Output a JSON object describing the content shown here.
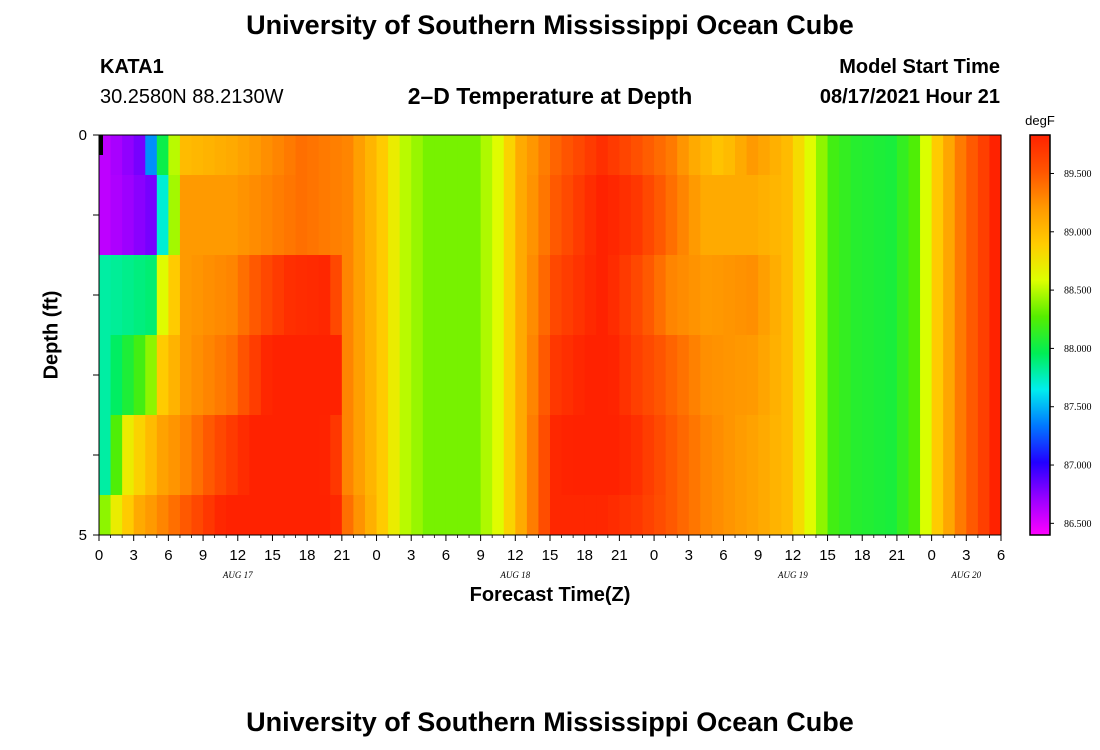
{
  "header": {
    "title_top": "University of Southern Mississippi Ocean Cube",
    "title_bottom": "University of Southern Mississippi Ocean Cube",
    "station": "KATA1",
    "coords": "30.2580N  88.2130W",
    "subtitle": "2–D Temperature at Depth",
    "model_start_label": "Model Start Time",
    "model_start_value": "08/17/2021 Hour 21"
  },
  "colors": {
    "background": "#ffffff",
    "colormap": [
      "#ff00ff",
      "#9900ff",
      "#2200ff",
      "#0077ff",
      "#00eeee",
      "#00ee55",
      "#55ee00",
      "#ddff00",
      "#ffcc00",
      "#ff9900",
      "#ff5500",
      "#ff2200"
    ]
  },
  "chart_data": {
    "type": "heatmap",
    "title": "2–D Temperature at Depth",
    "xlabel": "Forecast Time(Z)",
    "ylabel": "Depth (ft)",
    "colorbar_unit": "degF",
    "colorbar_ticks": [
      "89.500",
      "89.000",
      "88.500",
      "88.000",
      "87.500",
      "87.000",
      "86.500"
    ],
    "colorbar_tick_values": [
      89.5,
      89.0,
      88.5,
      88.0,
      87.5,
      87.0,
      86.5
    ],
    "colorbar_range": [
      86.4,
      89.83
    ],
    "y_ticks": [
      "0",
      "5"
    ],
    "y_range": [
      0,
      5
    ],
    "x_ticks": [
      "0",
      "3",
      "6",
      "9",
      "12",
      "15",
      "18",
      "21",
      "0",
      "3",
      "6",
      "9",
      "12",
      "15",
      "18",
      "21",
      "0",
      "3",
      "6",
      "9",
      "12",
      "15",
      "18",
      "21",
      "0",
      "3",
      "6"
    ],
    "x_range_hours": [
      0,
      78
    ],
    "date_labels": [
      {
        "text": "AUG 17",
        "hour": 12
      },
      {
        "text": "AUG 18",
        "hour": 36
      },
      {
        "text": "AUG 19",
        "hour": 60
      },
      {
        "text": "AUG 20",
        "hour": 75
      }
    ],
    "depth_levels": [
      0,
      1,
      2,
      3,
      4,
      5
    ],
    "hours": [
      0,
      1,
      2,
      3,
      4,
      5,
      6,
      7,
      8,
      9,
      10,
      11,
      12,
      13,
      14,
      15,
      16,
      17,
      18,
      19,
      20,
      21,
      22,
      23,
      24,
      25,
      26,
      27,
      28,
      29,
      30,
      31,
      32,
      33,
      34,
      35,
      36,
      37,
      38,
      39,
      40,
      41,
      42,
      43,
      44,
      45,
      46,
      47,
      48,
      49,
      50,
      51,
      52,
      53,
      54,
      55,
      56,
      57,
      58,
      59,
      60,
      61,
      62,
      63,
      64,
      65,
      66,
      67,
      68,
      69,
      70,
      71,
      72,
      73,
      74,
      75,
      76,
      77
    ],
    "keys": [
      {
        "depth": 0,
        "points": [
          [
            0,
            86.6
          ],
          [
            3,
            86.8
          ],
          [
            5,
            88.0
          ],
          [
            7,
            89.0
          ],
          [
            11,
            89.1
          ],
          [
            17,
            89.4
          ],
          [
            21,
            89.3
          ],
          [
            24,
            88.9
          ],
          [
            26,
            88.5
          ],
          [
            28,
            88.35
          ],
          [
            32,
            88.35
          ],
          [
            34,
            88.6
          ],
          [
            36,
            89.1
          ],
          [
            39,
            89.45
          ],
          [
            43,
            89.75
          ],
          [
            46,
            89.55
          ],
          [
            49,
            89.35
          ],
          [
            51,
            89.1
          ],
          [
            53,
            88.95
          ],
          [
            54,
            89.0
          ],
          [
            56,
            89.2
          ],
          [
            59,
            89.0
          ],
          [
            61,
            88.6
          ],
          [
            63,
            88.2
          ],
          [
            65,
            88.1
          ],
          [
            68,
            88.05
          ],
          [
            70,
            88.25
          ],
          [
            72,
            88.9
          ],
          [
            74,
            89.35
          ],
          [
            76,
            89.65
          ],
          [
            77,
            89.85
          ]
        ]
      },
      {
        "depth": 1,
        "points": [
          [
            0,
            86.6
          ],
          [
            4,
            86.8
          ],
          [
            5,
            87.7
          ],
          [
            7,
            89.2
          ],
          [
            11,
            89.2
          ],
          [
            17,
            89.4
          ],
          [
            21,
            89.3
          ],
          [
            24,
            88.9
          ],
          [
            26,
            88.5
          ],
          [
            28,
            88.35
          ],
          [
            32,
            88.35
          ],
          [
            34,
            88.6
          ],
          [
            36,
            89.1
          ],
          [
            39,
            89.5
          ],
          [
            43,
            89.85
          ],
          [
            46,
            89.7
          ],
          [
            49,
            89.4
          ],
          [
            52,
            89.1
          ],
          [
            56,
            89.1
          ],
          [
            59,
            89.0
          ],
          [
            61,
            88.6
          ],
          [
            63,
            88.2
          ],
          [
            65,
            88.1
          ],
          [
            68,
            88.05
          ],
          [
            70,
            88.25
          ],
          [
            72,
            88.9
          ],
          [
            74,
            89.35
          ],
          [
            76,
            89.65
          ],
          [
            77,
            89.85
          ]
        ]
      },
      {
        "depth": 2,
        "points": [
          [
            0,
            87.8
          ],
          [
            4,
            87.9
          ],
          [
            5,
            88.6
          ],
          [
            7,
            89.2
          ],
          [
            11,
            89.3
          ],
          [
            14,
            89.6
          ],
          [
            16,
            89.75
          ],
          [
            19,
            89.8
          ],
          [
            20,
            89.6
          ],
          [
            21,
            89.3
          ],
          [
            24,
            88.9
          ],
          [
            26,
            88.5
          ],
          [
            28,
            88.35
          ],
          [
            32,
            88.35
          ],
          [
            34,
            88.6
          ],
          [
            36,
            89.1
          ],
          [
            39,
            89.6
          ],
          [
            43,
            89.85
          ],
          [
            46,
            89.6
          ],
          [
            49,
            89.3
          ],
          [
            52,
            89.2
          ],
          [
            56,
            89.25
          ],
          [
            59,
            89.0
          ],
          [
            61,
            88.6
          ],
          [
            63,
            88.2
          ],
          [
            65,
            88.1
          ],
          [
            68,
            88.05
          ],
          [
            70,
            88.25
          ],
          [
            72,
            88.9
          ],
          [
            74,
            89.35
          ],
          [
            76,
            89.65
          ],
          [
            77,
            89.85
          ]
        ]
      },
      {
        "depth": 3,
        "points": [
          [
            0,
            87.8
          ],
          [
            3,
            88.2
          ],
          [
            4,
            88.4
          ],
          [
            5,
            88.9
          ],
          [
            7,
            89.2
          ],
          [
            11,
            89.4
          ],
          [
            14,
            89.8
          ],
          [
            17,
            89.95
          ],
          [
            20,
            89.85
          ],
          [
            21,
            89.3
          ],
          [
            24,
            88.9
          ],
          [
            26,
            88.5
          ],
          [
            28,
            88.35
          ],
          [
            32,
            88.35
          ],
          [
            34,
            88.6
          ],
          [
            36,
            89.1
          ],
          [
            39,
            89.7
          ],
          [
            43,
            89.9
          ],
          [
            46,
            89.65
          ],
          [
            49,
            89.45
          ],
          [
            52,
            89.25
          ],
          [
            56,
            89.2
          ],
          [
            59,
            89.0
          ],
          [
            61,
            88.6
          ],
          [
            63,
            88.2
          ],
          [
            65,
            88.1
          ],
          [
            68,
            88.05
          ],
          [
            70,
            88.25
          ],
          [
            72,
            88.9
          ],
          [
            74,
            89.35
          ],
          [
            76,
            89.65
          ],
          [
            77,
            89.85
          ]
        ]
      },
      {
        "depth": 4,
        "points": [
          [
            0,
            87.8
          ],
          [
            2,
            88.7
          ],
          [
            3,
            88.85
          ],
          [
            5,
            89.15
          ],
          [
            7,
            89.3
          ],
          [
            10,
            89.6
          ],
          [
            13,
            89.85
          ],
          [
            16,
            90.1
          ],
          [
            18,
            89.95
          ],
          [
            20,
            89.7
          ],
          [
            21,
            89.3
          ],
          [
            24,
            88.9
          ],
          [
            26,
            88.5
          ],
          [
            28,
            88.35
          ],
          [
            32,
            88.35
          ],
          [
            34,
            88.6
          ],
          [
            36,
            89.1
          ],
          [
            39,
            89.8
          ],
          [
            43,
            89.9
          ],
          [
            46,
            89.75
          ],
          [
            49,
            89.5
          ],
          [
            52,
            89.3
          ],
          [
            56,
            89.15
          ],
          [
            59,
            89.0
          ],
          [
            61,
            88.6
          ],
          [
            63,
            88.2
          ],
          [
            65,
            88.1
          ],
          [
            68,
            88.05
          ],
          [
            70,
            88.25
          ],
          [
            72,
            88.9
          ],
          [
            74,
            89.35
          ],
          [
            76,
            89.65
          ],
          [
            77,
            89.85
          ]
        ]
      },
      {
        "depth": 5,
        "points": [
          [
            0,
            88.4
          ],
          [
            1,
            88.7
          ],
          [
            3,
            89.1
          ],
          [
            5,
            89.3
          ],
          [
            7,
            89.5
          ],
          [
            10,
            89.8
          ],
          [
            13,
            90.05
          ],
          [
            16,
            90.2
          ],
          [
            18,
            90.05
          ],
          [
            20,
            89.8
          ],
          [
            21,
            89.4
          ],
          [
            24,
            88.9
          ],
          [
            26,
            88.5
          ],
          [
            28,
            88.35
          ],
          [
            32,
            88.35
          ],
          [
            34,
            88.6
          ],
          [
            36,
            89.1
          ],
          [
            39,
            89.8
          ],
          [
            43,
            89.8
          ],
          [
            46,
            89.7
          ],
          [
            49,
            89.5
          ],
          [
            52,
            89.3
          ],
          [
            56,
            89.15
          ],
          [
            59,
            89.0
          ],
          [
            61,
            88.6
          ],
          [
            63,
            88.2
          ],
          [
            65,
            88.1
          ],
          [
            68,
            88.05
          ],
          [
            70,
            88.25
          ],
          [
            72,
            88.9
          ],
          [
            74,
            89.35
          ],
          [
            76,
            89.65
          ],
          [
            77,
            89.85
          ]
        ]
      }
    ]
  }
}
